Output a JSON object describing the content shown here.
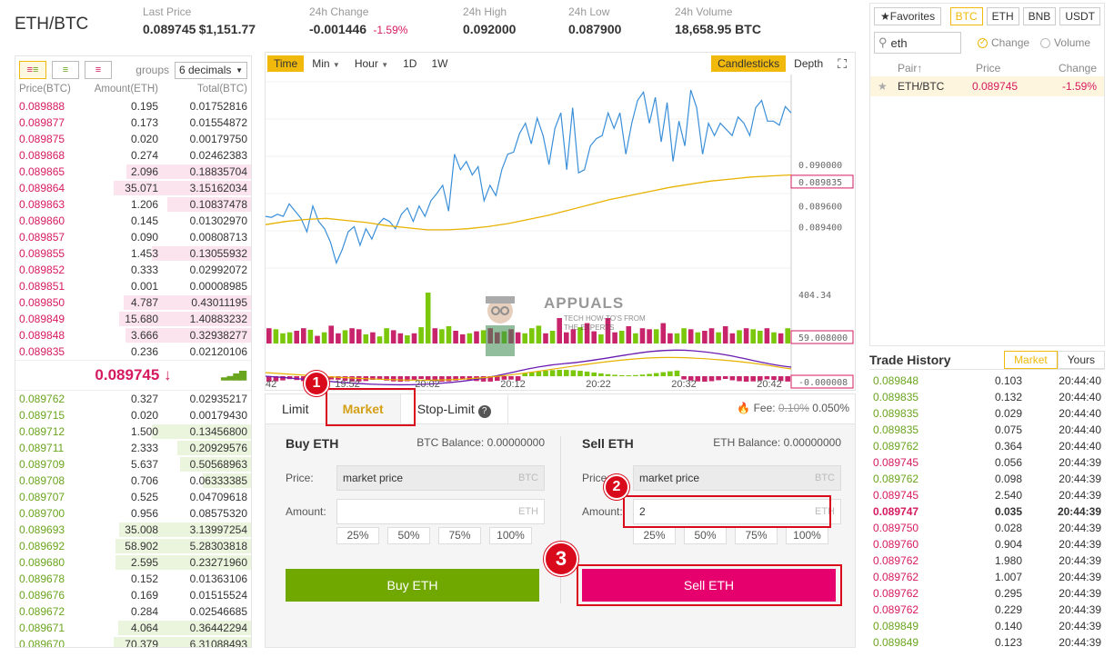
{
  "header": {
    "pair": "ETH/BTC",
    "stats": [
      {
        "label": "Last Price",
        "value": "0.089745",
        "extra": "$1,151.77",
        "color": "red"
      },
      {
        "label": "24h Change",
        "value": "-0.001446",
        "extra": "-1.59%",
        "color": "red"
      },
      {
        "label": "24h High",
        "value": "0.092000",
        "extra": ""
      },
      {
        "label": "24h Low",
        "value": "0.087900",
        "extra": ""
      },
      {
        "label": "24h Volume",
        "value": "18,658.95 BTC",
        "extra": ""
      }
    ]
  },
  "orderbook": {
    "groups_label": "groups",
    "decimals": "6 decimals",
    "headers": [
      "Price(BTC)",
      "Amount(ETH)",
      "Total(BTC)"
    ],
    "asks": [
      [
        "0.089888",
        "0.195",
        "0.01752816",
        0
      ],
      [
        "0.089877",
        "0.173",
        "0.01554872",
        0
      ],
      [
        "0.089875",
        "0.020",
        "0.00179750",
        0
      ],
      [
        "0.089868",
        "0.274",
        "0.02462383",
        0
      ],
      [
        "0.089865",
        "2.096",
        "0.18835704",
        0.88
      ],
      [
        "0.089864",
        "35.071",
        "3.15162034",
        0.97
      ],
      [
        "0.089863",
        "1.206",
        "0.10837478",
        0.59
      ],
      [
        "0.089860",
        "0.145",
        "0.01302970",
        0
      ],
      [
        "0.089857",
        "0.090",
        "0.00808713",
        0
      ],
      [
        "0.089855",
        "1.453",
        "0.13055932",
        0.7
      ],
      [
        "0.089852",
        "0.333",
        "0.02992072",
        0
      ],
      [
        "0.089851",
        "0.001",
        "0.00008985",
        0
      ],
      [
        "0.089850",
        "4.787",
        "0.43011195",
        0.9
      ],
      [
        "0.089849",
        "15.680",
        "1.40883232",
        0.93
      ],
      [
        "0.089848",
        "3.666",
        "0.32938277",
        0.89
      ],
      [
        "0.089835",
        "0.236",
        "0.02120106",
        0
      ]
    ],
    "mid_price": "0.089745 ↓",
    "bids": [
      [
        "0.089762",
        "0.327",
        "0.02935217",
        0
      ],
      [
        "0.089715",
        "0.020",
        "0.00179430",
        0
      ],
      [
        "0.089712",
        "1.500",
        "0.13456800",
        0.7
      ],
      [
        "0.089711",
        "2.333",
        "0.20929576",
        0.52
      ],
      [
        "0.089709",
        "5.637",
        "0.50568963",
        0.5
      ],
      [
        "0.089708",
        "0.706",
        "0.06333385",
        0.34
      ],
      [
        "0.089707",
        "0.525",
        "0.04709618",
        0
      ],
      [
        "0.089700",
        "0.956",
        "0.08575320",
        0
      ],
      [
        "0.089693",
        "35.008",
        "3.13997254",
        0.93
      ],
      [
        "0.089692",
        "58.902",
        "5.28303818",
        0.96
      ],
      [
        "0.089680",
        "2.595",
        "0.23271960",
        0.96
      ],
      [
        "0.089678",
        "0.152",
        "0.01363106",
        0
      ],
      [
        "0.089676",
        "0.169",
        "0.01515524",
        0
      ],
      [
        "0.089672",
        "0.284",
        "0.02546685",
        0
      ],
      [
        "0.089671",
        "4.064",
        "0.36442294",
        0.94
      ],
      [
        "0.089670",
        "70.379",
        "6.31088493",
        0.97
      ]
    ]
  },
  "chart": {
    "toolbar": [
      "Time",
      "Min",
      "Hour",
      "1D",
      "1W"
    ],
    "view": [
      "Candlesticks",
      "Depth"
    ],
    "y_ticks": [
      "0.090000",
      "0.089835",
      "0.089600",
      "0.089400"
    ],
    "price_tag": "0.089835",
    "vol_max": "404.34",
    "vol_tag": "59.008000",
    "macd_tag": "-0.000008",
    "x_ticks": [
      "42",
      "19:52",
      "20:02",
      "20:12",
      "20:22",
      "20:32",
      "20:42"
    ],
    "price_line": [
      0.0895,
      0.08949,
      0.08952,
      0.0895,
      0.08962,
      0.08955,
      0.08948,
      0.08935,
      0.0896,
      0.08945,
      0.08938,
      0.08925,
      0.08905,
      0.08918,
      0.08935,
      0.0894,
      0.08922,
      0.08938,
      0.08928,
      0.08942,
      0.08948,
      0.08945,
      0.08938,
      0.08952,
      0.08958,
      0.08945,
      0.0896,
      0.0895,
      0.08965,
      0.08972,
      0.0898,
      0.08955,
      0.0901,
      0.08995,
      0.09003,
      0.0899,
      0.08998,
      0.08965,
      0.0898,
      0.0897,
      0.08995,
      0.0901,
      0.09012,
      0.0903,
      0.0904,
      0.0902,
      0.09045,
      0.09028,
      0.09,
      0.09035,
      0.0905,
      0.08995,
      0.09055,
      0.08992,
      0.08995,
      0.09018,
      0.09025,
      0.09028,
      0.0905,
      0.09035,
      0.0905,
      0.0901,
      0.0904,
      0.09062,
      0.0907,
      0.0904,
      0.09065,
      0.09022,
      0.0906,
      0.09003,
      0.09042,
      0.09018,
      0.09072,
      0.09055,
      0.0901,
      0.0904,
      0.09028,
      0.0904,
      0.09034,
      0.09028,
      0.09046,
      0.0904,
      0.09028,
      0.09055,
      0.09062,
      0.09042,
      0.09042,
      0.09038,
      0.09056,
      0.0905
    ],
    "ma_line": [
      0.08942,
      0.08945,
      0.08947,
      0.08948,
      0.08946,
      0.08944,
      0.08941,
      0.08939,
      0.08937,
      0.08937,
      0.08938,
      0.0894,
      0.08943,
      0.08947,
      0.08951,
      0.08956,
      0.08961,
      0.08966,
      0.0897,
      0.08974,
      0.08978,
      0.08981,
      0.08984,
      0.08986,
      0.08988,
      0.08989,
      0.0899
    ],
    "volumes": [
      0.3,
      0.28,
      0.2,
      0.22,
      0.25,
      0.3,
      0.27,
      0.15,
      0.22,
      0.35,
      0.2,
      0.26,
      0.3,
      0.28,
      0.18,
      0.22,
      0.14,
      0.3,
      0.26,
      0.2,
      0.16,
      0.2,
      0.32,
      1.0,
      0.3,
      0.28,
      0.34,
      0.25,
      0.18,
      0.2,
      0.24,
      0.26,
      0.3,
      0.22,
      0.24,
      0.28,
      0.22,
      0.2,
      0.3,
      0.35,
      0.2,
      0.25,
      0.5,
      0.22,
      0.28,
      0.32,
      0.4,
      0.24,
      0.18,
      0.5,
      0.22,
      0.25,
      0.34,
      0.2,
      0.3,
      0.28,
      0.28,
      0.4,
      0.2,
      0.2,
      0.3,
      0.28,
      0.22,
      0.25,
      0.3,
      0.22,
      0.34,
      0.2,
      0.26,
      0.3,
      0.28,
      0.25,
      0.3,
      0.22,
      0.2,
      0.3
    ],
    "vol_colors": "rgggrrgrgrrgrrgrggrrgrggrggrrgrgrrgrrgggrgrrrgrrgrrgrgrrgrrggrgrrgrrgrggrgrg"
  },
  "trade": {
    "tabs": [
      "Limit",
      "Market",
      "Stop-Limit"
    ],
    "fee_label": "Fee:",
    "fee_old": "0.10%",
    "fee_new": "0.050%",
    "buy": {
      "title": "Buy ETH",
      "balance": "BTC Balance: 0.00000000",
      "price_label": "Price:",
      "price_value": "market price",
      "price_unit": "BTC",
      "amount_label": "Amount:",
      "amount_value": "",
      "amount_unit": "ETH",
      "button": "Buy ETH"
    },
    "sell": {
      "title": "Sell ETH",
      "balance": "ETH Balance: 0.00000000",
      "price_label": "Price:",
      "price_value": "market price",
      "price_unit": "BTC",
      "amount_label": "Amount:",
      "amount_value": "2",
      "amount_unit": "ETH",
      "button": "Sell ETH"
    },
    "percents": [
      "25%",
      "50%",
      "75%",
      "100%"
    ]
  },
  "markets": {
    "favorites": "★Favorites",
    "currencies": [
      "BTC",
      "ETH",
      "BNB",
      "USDT"
    ],
    "search": "eth",
    "radio_change": "Change",
    "radio_volume": "Volume",
    "headers": [
      "Pair↑",
      "Price",
      "Change"
    ],
    "rows": [
      {
        "pair": "ETH/BTC",
        "price": "0.089745",
        "change": "-1.59%"
      }
    ]
  },
  "history": {
    "title": "Trade History",
    "tabs": [
      "Market",
      "Yours"
    ],
    "rows": [
      [
        "0.089848",
        "0.103",
        "20:44:40",
        "g"
      ],
      [
        "0.089835",
        "0.132",
        "20:44:40",
        "g"
      ],
      [
        "0.089835",
        "0.029",
        "20:44:40",
        "g"
      ],
      [
        "0.089835",
        "0.075",
        "20:44:40",
        "g"
      ],
      [
        "0.089762",
        "0.364",
        "20:44:40",
        "g"
      ],
      [
        "0.089745",
        "0.056",
        "20:44:39",
        "r"
      ],
      [
        "0.089762",
        "0.098",
        "20:44:39",
        "g"
      ],
      [
        "0.089745",
        "2.540",
        "20:44:39",
        "r"
      ],
      [
        "0.089747",
        "0.035",
        "20:44:39",
        "rb"
      ],
      [
        "0.089750",
        "0.028",
        "20:44:39",
        "r"
      ],
      [
        "0.089760",
        "0.904",
        "20:44:39",
        "r"
      ],
      [
        "0.089762",
        "1.980",
        "20:44:39",
        "r"
      ],
      [
        "0.089762",
        "1.007",
        "20:44:39",
        "r"
      ],
      [
        "0.089762",
        "0.295",
        "20:44:39",
        "r"
      ],
      [
        "0.089762",
        "0.229",
        "20:44:39",
        "r"
      ],
      [
        "0.089849",
        "0.140",
        "20:44:39",
        "g"
      ],
      [
        "0.089849",
        "0.123",
        "20:44:39",
        "g"
      ]
    ]
  },
  "annotations": [
    "1",
    "2",
    "3"
  ],
  "watermark": {
    "brand": "APPUALS",
    "tagline": "TECH HOW-TO'S FROM",
    "tagline2": "THE EXPERTS"
  }
}
